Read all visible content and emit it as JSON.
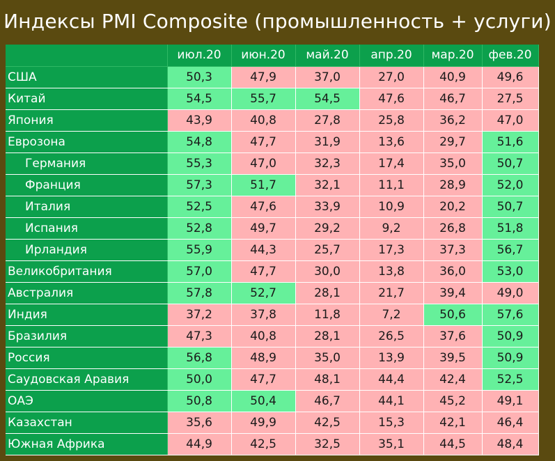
{
  "title": "Индексы PMI Composite (промышленность + услуги)",
  "colors": {
    "above_50": "#66f09a",
    "below_50": "#ffb2b4",
    "label_bg": "#0ca04c",
    "frame": "#5a4a10"
  },
  "chart_data": {
    "type": "table",
    "title": "Индексы PMI Composite (промышленность + услуги)",
    "columns": [
      "июл.20",
      "июн.20",
      "май.20",
      "апр.20",
      "мар.20",
      "фев.20"
    ],
    "rows": [
      {
        "country": "США",
        "sub": false,
        "values": [
          "50,3",
          "47,9",
          "37,0",
          "27,0",
          "40,9",
          "49,6"
        ],
        "states": [
          "up",
          "down",
          "down",
          "down",
          "down",
          "down"
        ]
      },
      {
        "country": "Китай",
        "sub": false,
        "values": [
          "54,5",
          "55,7",
          "54,5",
          "47,6",
          "46,7",
          "27,5"
        ],
        "states": [
          "up",
          "up",
          "up",
          "down",
          "down",
          "down"
        ]
      },
      {
        "country": "Япония",
        "sub": false,
        "values": [
          "43,9",
          "40,8",
          "27,8",
          "25,8",
          "36,2",
          "47,0"
        ],
        "states": [
          "down",
          "down",
          "down",
          "down",
          "down",
          "down"
        ]
      },
      {
        "country": "Еврозона",
        "sub": false,
        "values": [
          "54,8",
          "47,7",
          "31,9",
          "13,6",
          "29,7",
          "51,6"
        ],
        "states": [
          "up",
          "down",
          "down",
          "down",
          "down",
          "up"
        ]
      },
      {
        "country": "Германия",
        "sub": true,
        "values": [
          "55,3",
          "47,0",
          "32,3",
          "17,4",
          "35,0",
          "50,7"
        ],
        "states": [
          "up",
          "down",
          "down",
          "down",
          "down",
          "up"
        ]
      },
      {
        "country": "Франция",
        "sub": true,
        "values": [
          "57,3",
          "51,7",
          "32,1",
          "11,1",
          "28,9",
          "52,0"
        ],
        "states": [
          "up",
          "up",
          "down",
          "down",
          "down",
          "up"
        ]
      },
      {
        "country": "Италия",
        "sub": true,
        "values": [
          "52,5",
          "47,6",
          "33,9",
          "10,9",
          "20,2",
          "50,7"
        ],
        "states": [
          "up",
          "down",
          "down",
          "down",
          "down",
          "up"
        ]
      },
      {
        "country": "Испания",
        "sub": true,
        "values": [
          "52,8",
          "49,7",
          "29,2",
          "9,2",
          "26,8",
          "51,8"
        ],
        "states": [
          "up",
          "down",
          "down",
          "down",
          "down",
          "up"
        ]
      },
      {
        "country": "Ирландия",
        "sub": true,
        "values": [
          "55,9",
          "44,3",
          "25,7",
          "17,3",
          "37,3",
          "56,7"
        ],
        "states": [
          "up",
          "down",
          "down",
          "down",
          "down",
          "up"
        ]
      },
      {
        "country": "Великобритания",
        "sub": false,
        "values": [
          "57,0",
          "47,7",
          "30,0",
          "13,8",
          "36,0",
          "53,0"
        ],
        "states": [
          "up",
          "down",
          "down",
          "down",
          "down",
          "up"
        ]
      },
      {
        "country": "Австралия",
        "sub": false,
        "values": [
          "57,8",
          "52,7",
          "28,1",
          "21,7",
          "39,4",
          "49,0"
        ],
        "states": [
          "up",
          "up",
          "down",
          "down",
          "down",
          "down"
        ]
      },
      {
        "country": "Индия",
        "sub": false,
        "values": [
          "37,2",
          "37,8",
          "11,8",
          "7,2",
          "50,6",
          "57,6"
        ],
        "states": [
          "down",
          "down",
          "down",
          "down",
          "up",
          "up"
        ]
      },
      {
        "country": "Бразилия",
        "sub": false,
        "values": [
          "47,3",
          "40,8",
          "28,1",
          "26,5",
          "37,6",
          "50,9"
        ],
        "states": [
          "down",
          "down",
          "down",
          "down",
          "down",
          "up"
        ]
      },
      {
        "country": "Россия",
        "sub": false,
        "values": [
          "56,8",
          "48,9",
          "35,0",
          "13,9",
          "39,5",
          "50,9"
        ],
        "states": [
          "up",
          "down",
          "down",
          "down",
          "down",
          "up"
        ]
      },
      {
        "country": "Саудовская Аравия",
        "sub": false,
        "values": [
          "50,0",
          "47,7",
          "48,1",
          "44,4",
          "42,4",
          "52,5"
        ],
        "states": [
          "up",
          "down",
          "down",
          "down",
          "down",
          "up"
        ]
      },
      {
        "country": "ОАЭ",
        "sub": false,
        "values": [
          "50,8",
          "50,4",
          "46,7",
          "44,1",
          "45,2",
          "49,1"
        ],
        "states": [
          "up",
          "up",
          "down",
          "down",
          "down",
          "down"
        ]
      },
      {
        "country": "Казахстан",
        "sub": false,
        "values": [
          "35,6",
          "49,9",
          "42,5",
          "15,3",
          "42,1",
          "46,4"
        ],
        "states": [
          "down",
          "down",
          "down",
          "down",
          "down",
          "down"
        ]
      },
      {
        "country": "Южная Африка",
        "sub": false,
        "values": [
          "44,9",
          "42,5",
          "32,5",
          "35,1",
          "44,5",
          "48,4"
        ],
        "states": [
          "down",
          "down",
          "down",
          "down",
          "down",
          "down"
        ]
      }
    ]
  }
}
